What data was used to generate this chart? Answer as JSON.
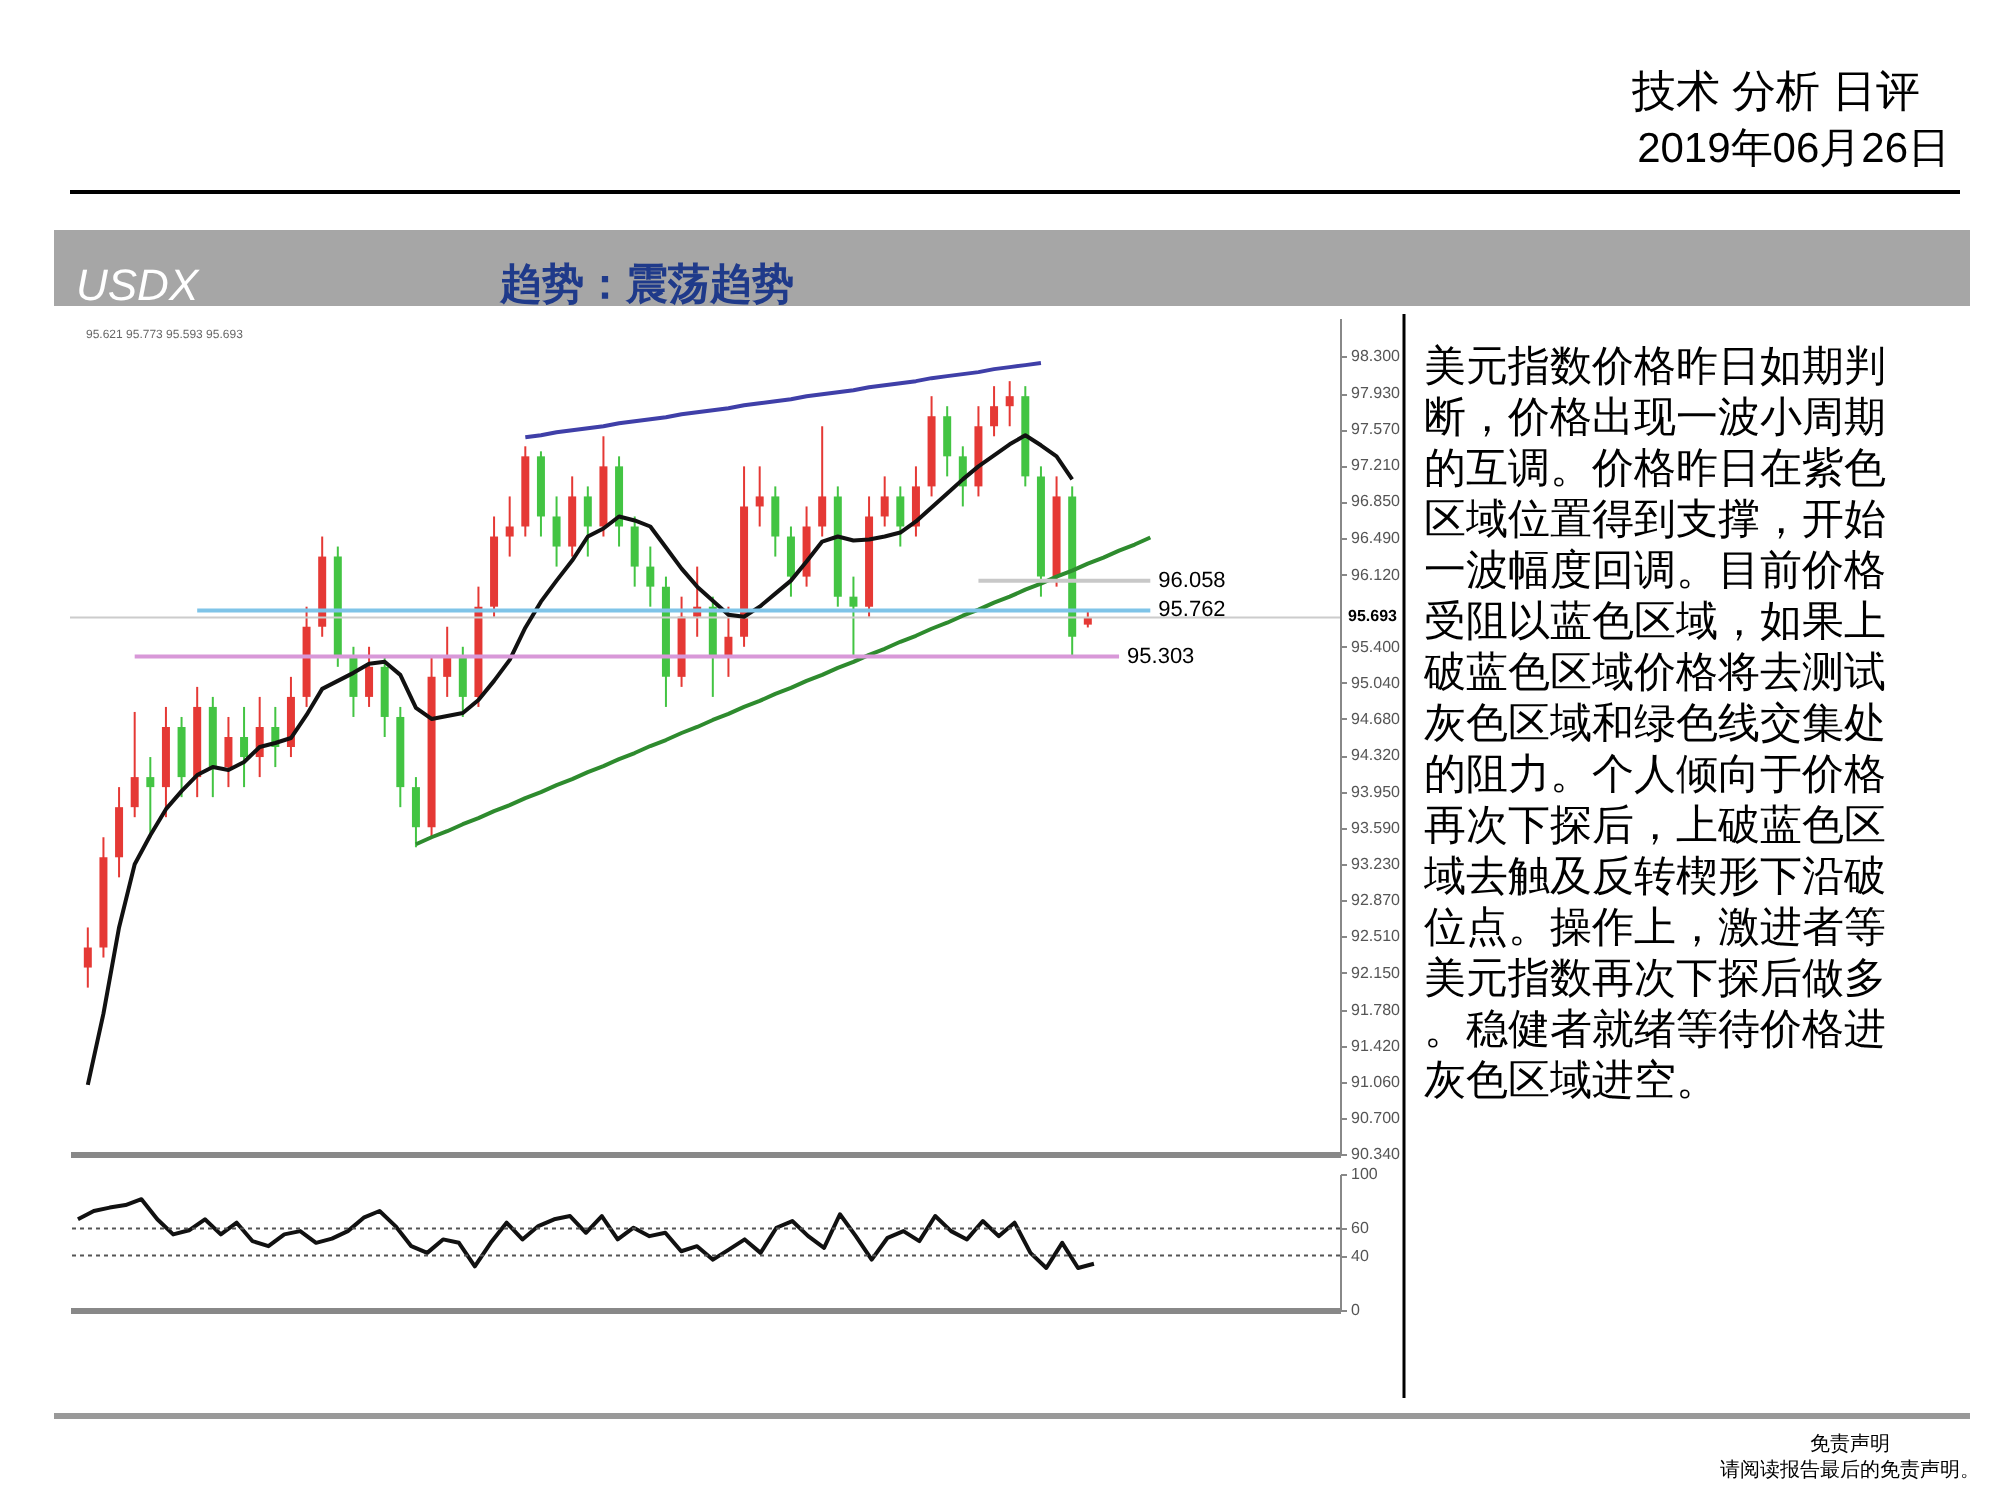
{
  "chart_data": [
    {
      "type": "candlestick",
      "title": "趋势：震荡趋势",
      "annotations": [
        "技术 分析 日评",
        "2019年06月26日",
        "USDX",
        "美元指数价格昨日如期判断，价格出现一波小周期的互调。价格昨日在紫色区域位置得到支撑，开始一波幅度回调。目前价格受阻以蓝色区域，如果上破蓝色区域价格将去测试灰色区域和绿色线交集处的阻力。个人倾向于价格再次下探后，上破蓝色区域去触及反转楔形下沿破位点。操作上，激进者等美元指数再次下探后做多。稳健者就绪等待价格进灰色区域进空。",
        "免责声明",
        "请阅读报告最后的免责声明。",
        "95.621 95.773 95.593 95.693"
      ],
      "categories": [
        null,
        null,
        null,
        null,
        null,
        null,
        null,
        null,
        null,
        null,
        null,
        null,
        null,
        null,
        null,
        null,
        null,
        null,
        null,
        null,
        null,
        null,
        null,
        null,
        null,
        null,
        null,
        null,
        null,
        null,
        null,
        null,
        null,
        null,
        null,
        null,
        null,
        null,
        null,
        null,
        null,
        null,
        null,
        null,
        null,
        null,
        null,
        null,
        null,
        null,
        null,
        null,
        null,
        null,
        null,
        null,
        null,
        null,
        null,
        null,
        null,
        null,
        null,
        null,
        null,
        null,
        null,
        null,
        null,
        null,
        null,
        null,
        null,
        null,
        null,
        null,
        null,
        null,
        null,
        null
      ],
      "ohlc": [
        [
          92.2,
          92.6,
          92.0,
          92.4
        ],
        [
          92.4,
          93.5,
          92.3,
          93.3
        ],
        [
          93.3,
          94.0,
          93.1,
          93.8
        ],
        [
          93.8,
          94.75,
          93.7,
          94.1
        ],
        [
          94.1,
          94.3,
          93.5,
          94.0
        ],
        [
          94.0,
          94.8,
          93.7,
          94.6
        ],
        [
          94.6,
          94.7,
          93.9,
          94.1
        ],
        [
          94.1,
          95.0,
          93.9,
          94.8
        ],
        [
          94.8,
          94.9,
          93.9,
          94.2
        ],
        [
          94.2,
          94.7,
          94.0,
          94.5
        ],
        [
          94.5,
          94.8,
          94.0,
          94.3
        ],
        [
          94.3,
          94.9,
          94.1,
          94.6
        ],
        [
          94.6,
          94.8,
          94.2,
          94.4
        ],
        [
          94.4,
          95.1,
          94.3,
          94.9
        ],
        [
          94.9,
          95.8,
          94.8,
          95.6
        ],
        [
          95.6,
          96.5,
          95.5,
          96.3
        ],
        [
          96.3,
          96.4,
          95.2,
          95.3
        ],
        [
          95.3,
          95.4,
          94.7,
          94.9
        ],
        [
          94.9,
          95.4,
          94.8,
          95.2
        ],
        [
          95.2,
          95.3,
          94.5,
          94.7
        ],
        [
          94.7,
          94.8,
          93.8,
          94.0
        ],
        [
          94.0,
          94.1,
          93.4,
          93.6
        ],
        [
          93.6,
          95.3,
          93.5,
          95.1
        ],
        [
          95.1,
          95.6,
          94.9,
          95.3
        ],
        [
          95.3,
          95.4,
          94.7,
          94.9
        ],
        [
          94.9,
          96.0,
          94.8,
          95.8
        ],
        [
          95.8,
          96.7,
          95.7,
          96.5
        ],
        [
          96.5,
          96.9,
          96.3,
          96.6
        ],
        [
          96.6,
          97.4,
          96.5,
          97.3
        ],
        [
          97.3,
          97.35,
          96.5,
          96.7
        ],
        [
          96.7,
          96.9,
          96.2,
          96.4
        ],
        [
          96.4,
          97.1,
          96.3,
          96.9
        ],
        [
          96.9,
          97.0,
          96.3,
          96.6
        ],
        [
          96.6,
          97.5,
          96.5,
          97.2
        ],
        [
          97.2,
          97.3,
          96.4,
          96.6
        ],
        [
          96.6,
          96.7,
          96.0,
          96.2
        ],
        [
          96.2,
          96.4,
          95.8,
          96.0
        ],
        [
          96.0,
          96.1,
          94.8,
          95.1
        ],
        [
          95.1,
          95.9,
          95.0,
          95.7
        ],
        [
          95.7,
          96.2,
          95.5,
          95.8
        ],
        [
          95.8,
          95.9,
          94.9,
          95.3
        ],
        [
          95.3,
          95.8,
          95.1,
          95.5
        ],
        [
          95.5,
          97.2,
          95.4,
          96.8
        ],
        [
          96.8,
          97.2,
          96.6,
          96.9
        ],
        [
          96.9,
          97.0,
          96.3,
          96.5
        ],
        [
          96.5,
          96.6,
          95.9,
          96.1
        ],
        [
          96.1,
          96.8,
          96.0,
          96.6
        ],
        [
          96.6,
          97.6,
          96.5,
          96.9
        ],
        [
          96.9,
          97.0,
          95.8,
          95.9
        ],
        [
          95.9,
          96.1,
          95.3,
          95.8
        ],
        [
          95.8,
          96.9,
          95.7,
          96.7
        ],
        [
          96.7,
          97.1,
          96.6,
          96.9
        ],
        [
          96.9,
          97.0,
          96.4,
          96.6
        ],
        [
          96.6,
          97.2,
          96.5,
          97.0
        ],
        [
          97.0,
          97.9,
          96.9,
          97.7
        ],
        [
          97.7,
          97.8,
          97.1,
          97.3
        ],
        [
          97.3,
          97.4,
          96.8,
          97.0
        ],
        [
          97.0,
          97.8,
          96.9,
          97.6
        ],
        [
          97.6,
          98.0,
          97.5,
          97.8
        ],
        [
          97.8,
          98.05,
          97.6,
          97.9
        ],
        [
          97.9,
          98.0,
          97.0,
          97.1
        ],
        [
          97.1,
          97.2,
          95.9,
          96.1
        ],
        [
          96.1,
          97.1,
          96.0,
          96.9
        ],
        [
          96.9,
          97.0,
          95.3,
          95.5
        ],
        [
          95.621,
          95.773,
          95.593,
          95.693
        ],
        null,
        null,
        null,
        null,
        null,
        null,
        null,
        null,
        null,
        null,
        null,
        null,
        null,
        null,
        null
      ],
      "colors": [
        "#e53935",
        "#e53935",
        "#e53935",
        "#e53935",
        "#43c443",
        "#e53935",
        "#43c443",
        "#e53935",
        "#43c443",
        "#e53935",
        "#43c443",
        "#e53935",
        "#43c443",
        "#e53935",
        "#e53935",
        "#e53935",
        "#43c443",
        "#43c443",
        "#e53935",
        "#43c443",
        "#43c443",
        "#43c443",
        "#e53935",
        "#e53935",
        "#43c443",
        "#e53935",
        "#e53935",
        "#e53935",
        "#e53935",
        "#43c443",
        "#43c443",
        "#e53935",
        "#43c443",
        "#e53935",
        "#43c443",
        "#43c443",
        "#43c443",
        "#43c443",
        "#e53935",
        "#e53935",
        "#43c443",
        "#e53935",
        "#e53935",
        "#e53935",
        "#43c443",
        "#43c443",
        "#e53935",
        "#e53935",
        "#43c443",
        "#43c443",
        "#e53935",
        "#e53935",
        "#43c443",
        "#e53935",
        "#e53935",
        "#43c443",
        "#43c443",
        "#e53935",
        "#e53935",
        "#e53935",
        "#43c443",
        "#43c443",
        "#e53935",
        "#43c443",
        "#e53935",
        null,
        null,
        null,
        null,
        null,
        null,
        null,
        null,
        null,
        null,
        null,
        null,
        null,
        null,
        null
      ],
      "series": [
        {
          "type": "line",
          "color": "#111111",
          "values": [
            91.03,
            91.74,
            92.6,
            93.23,
            93.52,
            93.78,
            93.96,
            94.12,
            94.2,
            94.17,
            94.25,
            94.4,
            94.44,
            94.49,
            94.72,
            94.98,
            95.06,
            95.14,
            95.23,
            95.25,
            95.12,
            94.79,
            94.68,
            94.71,
            94.74,
            94.87,
            95.06,
            95.27,
            95.59,
            95.85,
            96.06,
            96.26,
            96.5,
            96.58,
            96.7,
            96.66,
            96.6,
            96.39,
            96.18,
            96.0,
            95.86,
            95.72,
            95.7,
            95.8,
            95.93,
            96.06,
            96.25,
            96.45,
            96.5,
            96.46,
            96.47,
            96.5,
            96.54,
            96.65,
            96.79,
            96.93,
            97.07,
            97.2,
            97.31,
            97.42,
            97.51,
            97.41,
            97.3,
            97.07,
            null,
            null,
            null,
            null,
            null,
            null,
            null,
            null,
            null,
            null,
            null,
            null,
            null,
            null,
            null,
            null
          ]
        },
        {
          "type": "line",
          "color": "#3f3fa8",
          "values": [
            null,
            null,
            null,
            null,
            null,
            null,
            null,
            null,
            null,
            null,
            null,
            null,
            null,
            null,
            null,
            null,
            null,
            null,
            null,
            null,
            null,
            null,
            null,
            null,
            null,
            null,
            null,
            null,
            97.49,
            97.51,
            97.54,
            97.56,
            97.58,
            97.6,
            97.63,
            97.65,
            97.67,
            97.69,
            97.72,
            97.74,
            97.76,
            97.78,
            97.81,
            97.83,
            97.85,
            97.87,
            97.9,
            97.92,
            97.94,
            97.96,
            97.99,
            98.01,
            98.03,
            98.05,
            98.08,
            98.1,
            98.12,
            98.14,
            98.17,
            98.19,
            98.21,
            98.23,
            null,
            null,
            null,
            null,
            null,
            null,
            null,
            null,
            null,
            null,
            null,
            null,
            null,
            null,
            null,
            null,
            null,
            null
          ]
        },
        {
          "type": "line",
          "color": "#2e8b2e",
          "values": [
            null,
            null,
            null,
            null,
            null,
            null,
            null,
            null,
            null,
            null,
            null,
            null,
            null,
            null,
            null,
            null,
            null,
            null,
            null,
            null,
            null,
            93.43,
            93.5,
            93.56,
            93.63,
            93.69,
            93.76,
            93.82,
            93.89,
            93.95,
            94.02,
            94.08,
            94.15,
            94.21,
            94.28,
            94.34,
            94.41,
            94.47,
            94.54,
            94.6,
            94.67,
            94.73,
            94.8,
            94.86,
            94.93,
            94.99,
            95.06,
            95.12,
            95.19,
            95.25,
            95.32,
            95.38,
            95.45,
            95.51,
            95.58,
            95.64,
            95.71,
            95.77,
            95.84,
            95.9,
            95.97,
            96.03,
            96.1,
            96.16,
            96.23,
            96.29,
            96.36,
            96.42,
            96.49,
            null,
            null,
            null,
            null,
            null,
            null,
            null,
            null,
            null,
            null,
            null
          ]
        },
        {
          "type": "line",
          "name": "95.762",
          "color": "#7fc4e8",
          "values": [
            null,
            null,
            null,
            null,
            null,
            null,
            null,
            95.762,
            95.762,
            95.762,
            95.762,
            95.762,
            95.762,
            95.762,
            95.762,
            95.762,
            95.762,
            95.762,
            95.762,
            95.762,
            95.762,
            95.762,
            95.762,
            95.762,
            95.762,
            95.762,
            95.762,
            95.762,
            95.762,
            95.762,
            95.762,
            95.762,
            95.762,
            95.762,
            95.762,
            95.762,
            95.762,
            95.762,
            95.762,
            95.762,
            95.762,
            95.762,
            95.762,
            95.762,
            95.762,
            95.762,
            95.762,
            95.762,
            95.762,
            95.762,
            95.762,
            95.762,
            95.762,
            95.762,
            95.762,
            95.762,
            95.762,
            95.762,
            95.762,
            95.762,
            95.762,
            95.762,
            95.762,
            95.762,
            95.762,
            95.762,
            95.762,
            95.762,
            95.762,
            null,
            null,
            null,
            null,
            null,
            null,
            null,
            null,
            null,
            null,
            null
          ]
        },
        {
          "type": "line",
          "name": "95.303",
          "color": "#d898d8",
          "values": [
            null,
            null,
            null,
            95.303,
            95.303,
            95.303,
            95.303,
            95.303,
            95.303,
            95.303,
            95.303,
            95.303,
            95.303,
            95.303,
            95.303,
            95.303,
            95.303,
            95.303,
            95.303,
            95.303,
            95.303,
            95.303,
            95.303,
            95.303,
            95.303,
            95.303,
            95.303,
            95.303,
            95.303,
            95.303,
            95.303,
            95.303,
            95.303,
            95.303,
            95.303,
            95.303,
            95.303,
            95.303,
            95.303,
            95.303,
            95.303,
            95.303,
            95.303,
            95.303,
            95.303,
            95.303,
            95.303,
            95.303,
            95.303,
            95.303,
            95.303,
            95.303,
            95.303,
            95.303,
            95.303,
            95.303,
            95.303,
            95.303,
            95.303,
            95.303,
            95.303,
            95.303,
            95.303,
            95.303,
            95.303,
            95.303,
            95.303,
            null,
            null,
            null,
            null,
            null,
            null,
            null,
            null,
            null,
            null,
            null,
            null,
            null
          ]
        },
        {
          "type": "line",
          "name": "96.058",
          "color": "#c8c8c8",
          "values": [
            null,
            null,
            null,
            null,
            null,
            null,
            null,
            null,
            null,
            null,
            null,
            null,
            null,
            null,
            null,
            null,
            null,
            null,
            null,
            null,
            null,
            null,
            null,
            null,
            null,
            null,
            null,
            null,
            null,
            null,
            null,
            null,
            null,
            null,
            null,
            null,
            null,
            null,
            null,
            null,
            null,
            null,
            null,
            null,
            null,
            null,
            null,
            null,
            null,
            null,
            null,
            null,
            null,
            null,
            null,
            null,
            null,
            96.058,
            96.058,
            96.058,
            96.058,
            96.058,
            96.058,
            96.058,
            96.058,
            96.058,
            96.058,
            96.058,
            96.058,
            null,
            null,
            null,
            null,
            null,
            null,
            null,
            null,
            null,
            null,
            null
          ]
        }
      ],
      "ref_lines": [
        {
          "axis": "y",
          "value": 95.693,
          "label": "95.693",
          "color": "#cccccc"
        }
      ],
      "ylim": [
        90.34,
        98.68
      ],
      "yticks": [
        {
          "value": 98.3,
          "label": "98.300"
        },
        {
          "value": 97.93,
          "label": "97.930"
        },
        {
          "value": 97.57,
          "label": "97.570"
        },
        {
          "value": 97.21,
          "label": "97.210"
        },
        {
          "value": 96.85,
          "label": "96.850"
        },
        {
          "value": 96.49,
          "label": "96.490"
        },
        {
          "value": 96.12,
          "label": "96.120"
        },
        {
          "value": 95.4,
          "label": "95.400"
        },
        {
          "value": 95.04,
          "label": "95.040"
        },
        {
          "value": 94.68,
          "label": "94.680"
        },
        {
          "value": 94.32,
          "label": "94.320"
        },
        {
          "value": 93.95,
          "label": "93.950"
        },
        {
          "value": 93.59,
          "label": "93.590"
        },
        {
          "value": 93.23,
          "label": "93.230"
        },
        {
          "value": 92.87,
          "label": "92.870"
        },
        {
          "value": 92.51,
          "label": "92.510"
        },
        {
          "value": 92.15,
          "label": "92.150"
        },
        {
          "value": 91.78,
          "label": "91.780"
        },
        {
          "value": 91.42,
          "label": "91.420"
        },
        {
          "value": 91.06,
          "label": "91.060"
        },
        {
          "value": 90.7,
          "label": "90.700"
        },
        {
          "value": 90.34,
          "label": "90.340"
        }
      ],
      "tick_labels": "y"
    },
    {
      "type": "line",
      "categories": [
        null,
        null,
        null,
        null,
        null,
        null,
        null,
        null,
        null,
        null,
        null,
        null,
        null,
        null,
        null,
        null,
        null,
        null,
        null,
        null,
        null,
        null,
        null,
        null,
        null,
        null,
        null,
        null,
        null,
        null,
        null,
        null,
        null,
        null,
        null,
        null,
        null,
        null,
        null,
        null,
        null,
        null,
        null,
        null,
        null,
        null,
        null,
        null,
        null,
        null,
        null,
        null,
        null,
        null,
        null,
        null,
        null,
        null,
        null,
        null,
        null,
        null,
        null,
        null,
        null,
        null,
        null,
        null,
        null,
        null,
        null,
        null,
        null,
        null,
        null,
        null,
        null,
        null,
        null,
        null
      ],
      "series": [
        {
          "color": "#111111",
          "values": [
            66.7,
            72.8,
            75.3,
            77.2,
            81.5,
            66.7,
            55.6,
            58.6,
            66.7,
            55.6,
            64.2,
            50.6,
            46.9,
            55.6,
            58.0,
            49.4,
            52.5,
            58.0,
            67.9,
            72.8,
            61.7,
            46.9,
            42.0,
            51.9,
            49.4,
            32.1,
            49.4,
            64.2,
            51.9,
            61.7,
            66.7,
            69.1,
            56.8,
            69.1,
            51.9,
            60.5,
            54.3,
            56.8,
            43.2,
            46.9,
            37.0,
            44.4,
            51.9,
            42.0,
            60.5,
            65.4,
            54.3,
            45.7,
            70.4,
            54.3,
            37.0,
            53.1,
            58.0,
            50.6,
            69.1,
            58.0,
            51.9,
            65.4,
            54.3,
            64.2,
            42.0,
            30.9,
            49.4,
            30.9,
            34.0,
            null,
            null,
            null,
            null,
            null,
            null,
            null,
            null,
            null,
            null,
            null,
            null,
            null,
            null,
            null
          ]
        }
      ],
      "ref_lines": [
        {
          "axis": "y",
          "value": 60,
          "color": "#555555",
          "line_style": "dotted"
        },
        {
          "axis": "y",
          "value": 40,
          "color": "#555555",
          "line_style": "dotted"
        }
      ],
      "ylim": [
        0,
        100
      ],
      "yticks": [
        0,
        40,
        60,
        100
      ],
      "tick_labels": "y"
    }
  ]
}
